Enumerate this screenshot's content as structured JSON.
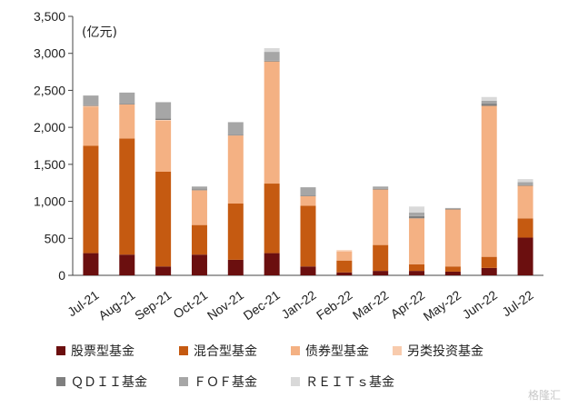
{
  "chart_data": {
    "type": "bar",
    "stacked": true,
    "unit_label": "(亿元)",
    "categories": [
      "Jul-21",
      "Aug-21",
      "Sep-21",
      "Oct-21",
      "Nov-21",
      "Dec-21",
      "Jan-22",
      "Feb-22",
      "Mar-22",
      "Apr-22",
      "May-22",
      "Jun-22",
      "Jul-22"
    ],
    "ylim": [
      0,
      3500
    ],
    "yticks": [
      "0",
      "500",
      "1,000",
      "1,500",
      "2,000",
      "2,500",
      "3,000",
      "3,500"
    ],
    "ytick_values": [
      0,
      500,
      1000,
      1500,
      2000,
      2500,
      3000,
      3500
    ],
    "series": [
      {
        "name": "股票型基金",
        "color": "#6b0f0f",
        "values": [
          300,
          280,
          120,
          280,
          210,
          300,
          120,
          40,
          60,
          60,
          50,
          100,
          510
        ]
      },
      {
        "name": "混合型基金",
        "color": "#c55a11",
        "values": [
          1450,
          1570,
          1280,
          400,
          760,
          940,
          820,
          160,
          350,
          90,
          70,
          150,
          260
        ]
      },
      {
        "name": "债券型基金",
        "color": "#f4b183",
        "values": [
          530,
          460,
          690,
          470,
          920,
          1650,
          130,
          120,
          750,
          620,
          770,
          2040,
          440
        ]
      },
      {
        "name": "另类投资基金",
        "color": "#f8cbad",
        "values": [
          10,
          0,
          10,
          0,
          0,
          0,
          0,
          20,
          0,
          0,
          0,
          0,
          0
        ]
      },
      {
        "name": "QDII基金",
        "color": "#7f7f7f",
        "values": [
          10,
          10,
          20,
          10,
          10,
          10,
          10,
          0,
          10,
          30,
          10,
          30,
          10
        ]
      },
      {
        "name": "FOF基金",
        "color": "#a6a6a6",
        "values": [
          130,
          150,
          220,
          40,
          170,
          120,
          110,
          0,
          30,
          50,
          10,
          40,
          40
        ]
      },
      {
        "name": "REITs基金",
        "color": "#d9d9d9",
        "values": [
          0,
          0,
          0,
          0,
          0,
          50,
          0,
          0,
          0,
          80,
          0,
          50,
          40
        ]
      }
    ],
    "legend": {
      "placement": "bottom",
      "labels": [
        "股票型基金",
        "混合型基金",
        "债券型基金",
        "另类投资基金",
        "ＱＤＩＩ基金",
        "ＦＯＦ基金",
        "ＲＥＩＴｓ基金"
      ]
    },
    "grid": false
  },
  "watermark": "格隆汇"
}
